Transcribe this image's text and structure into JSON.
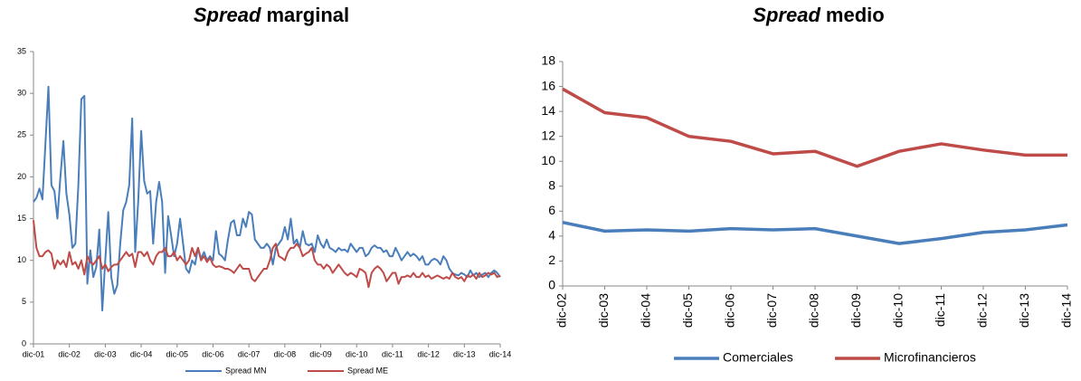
{
  "chart_data": [
    {
      "type": "line",
      "title": [
        "Spread",
        "marginal"
      ],
      "categories": [
        "dic-01",
        null,
        null,
        null,
        null,
        null,
        null,
        null,
        null,
        null,
        null,
        null,
        "dic-02",
        null,
        null,
        null,
        null,
        null,
        null,
        null,
        null,
        null,
        null,
        null,
        "dic-03",
        null,
        null,
        null,
        null,
        null,
        null,
        null,
        null,
        null,
        null,
        null,
        "dic-04",
        null,
        null,
        null,
        null,
        null,
        null,
        null,
        null,
        null,
        null,
        null,
        "dic-05",
        null,
        null,
        null,
        null,
        null,
        null,
        null,
        null,
        null,
        null,
        null,
        "dic-06",
        null,
        null,
        null,
        null,
        null,
        null,
        null,
        null,
        null,
        null,
        null,
        "dic-07",
        null,
        null,
        null,
        null,
        null,
        null,
        null,
        null,
        null,
        null,
        null,
        "dic-08",
        null,
        null,
        null,
        null,
        null,
        null,
        null,
        null,
        null,
        null,
        null,
        "dic-09",
        null,
        null,
        null,
        null,
        null,
        null,
        null,
        null,
        null,
        null,
        null,
        "dic-10",
        null,
        null,
        null,
        null,
        null,
        null,
        null,
        null,
        null,
        null,
        null,
        "dic-11",
        null,
        null,
        null,
        null,
        null,
        null,
        null,
        null,
        null,
        null,
        null,
        "dic-12",
        null,
        null,
        null,
        null,
        null,
        null,
        null,
        null,
        null,
        null,
        null,
        "dic-13",
        null,
        null,
        null,
        null,
        null,
        null,
        null,
        null,
        null,
        null,
        null,
        "dic-14"
      ],
      "series": [
        {
          "name": "Spread MN",
          "color": "#4a7ebb",
          "values": [
            17,
            17.5,
            18.6,
            17.3,
            24,
            30.8,
            19,
            18.3,
            15,
            20,
            24.3,
            18,
            15.5,
            11.5,
            12,
            19,
            29.3,
            29.7,
            7.2,
            11.2,
            8,
            9.2,
            13.7,
            4,
            10,
            15.8,
            8,
            6,
            7,
            12,
            16,
            17,
            19,
            27,
            11,
            17,
            25.5,
            19.5,
            18,
            18.3,
            12,
            17,
            19.4,
            17,
            8.5,
            15.3,
            13,
            10.5,
            12,
            15,
            12,
            9,
            8.5,
            10,
            9.5,
            11.5,
            10.2,
            11,
            10,
            10.5,
            10,
            13.5,
            10.8,
            10.5,
            10,
            12.5,
            14.5,
            14.8,
            13,
            13,
            15,
            14,
            15.8,
            15.5,
            12.5,
            12,
            11.5,
            11.5,
            12,
            11.5,
            9.5,
            11.5,
            12,
            12.5,
            14,
            12.5,
            15,
            12,
            12.5,
            11.5,
            13.5,
            12,
            11.8,
            12,
            11,
            13,
            12,
            11.5,
            12.5,
            11.5,
            11.3,
            11,
            11.5,
            11.2,
            11.3,
            11,
            12,
            11.5,
            11,
            11.5,
            11.5,
            10.5,
            10.8,
            11.5,
            11.8,
            11.5,
            11.5,
            11,
            11.2,
            10.5,
            10.5,
            11.5,
            10.8,
            10,
            10.5,
            11,
            10.5,
            10.8,
            10.5,
            10,
            10.5,
            9.5,
            9.5,
            10,
            10.2,
            10,
            9.5,
            10.5,
            10,
            9,
            8.5,
            8.3,
            8.2,
            8.5,
            8.3,
            8,
            8.8,
            8.2,
            8.5,
            8,
            8.3,
            8.5,
            8,
            8.5,
            8.8,
            8.5,
            8
          ]
        },
        {
          "name": "Spread ME",
          "color": "#be4b48",
          "values": [
            14.8,
            11.5,
            10.5,
            10.5,
            11,
            11.2,
            10.8,
            9,
            10,
            9.5,
            10,
            9.2,
            11,
            9.5,
            9.8,
            9,
            10,
            8.3,
            10.5,
            9.8,
            9.5,
            10,
            10.5,
            9,
            9.5,
            8.7,
            9.2,
            9.5,
            9.5,
            10,
            10.5,
            11,
            10.5,
            10.8,
            9.2,
            11,
            11,
            10.5,
            11,
            10,
            9.5,
            10.5,
            11,
            11,
            11.5,
            10.5,
            10.5,
            11,
            10,
            10.5,
            10,
            9.5,
            10,
            11.5,
            10.5,
            11.5,
            10,
            10.5,
            9.8,
            10.3,
            9.5,
            9.2,
            9.3,
            9.2,
            9,
            9,
            8.8,
            8.5,
            9,
            9.5,
            9,
            9,
            9,
            7.8,
            7.5,
            8,
            8.5,
            9,
            9,
            10,
            11.5,
            12,
            10.5,
            10.3,
            10,
            11,
            11.5,
            11.5,
            12,
            11.5,
            10.5,
            10.8,
            11,
            11.5,
            10,
            9.5,
            9.5,
            9,
            9.5,
            9.2,
            8.5,
            9,
            9.5,
            9,
            8.5,
            8.2,
            8.5,
            8.3,
            8,
            9,
            8.8,
            8.5,
            6.8,
            8.5,
            9,
            9.3,
            9,
            8.5,
            7.5,
            8,
            8.5,
            8.5,
            7.2,
            8,
            8,
            8.2,
            8,
            8.5,
            8,
            8,
            8.5,
            8,
            8.2,
            7.8,
            8,
            8.2,
            8,
            7.8,
            8,
            7.8,
            8.5,
            8,
            7.8,
            8,
            7.5,
            8.2,
            8,
            8.3,
            7.8,
            8.5,
            8,
            8.2,
            8.5,
            8.3,
            8.5,
            8,
            8.2
          ]
        }
      ],
      "ylim": [
        0,
        35
      ],
      "yticks": [
        0,
        5,
        10,
        15,
        20,
        25,
        30,
        35
      ],
      "grid": false,
      "legend": "bottom"
    },
    {
      "type": "line",
      "title": [
        "Spread",
        "medio"
      ],
      "categories": [
        "dic-02",
        "dic-03",
        "dic-04",
        "dic-05",
        "dic-06",
        "dic-07",
        "dic-08",
        "dic-09",
        "dic-10",
        "dic-11",
        "dic-12",
        "dic-13",
        "dic-14"
      ],
      "series": [
        {
          "name": "Comerciales",
          "color": "#4a7ebb",
          "values": [
            5.1,
            4.4,
            4.5,
            4.4,
            4.6,
            4.5,
            4.6,
            4.0,
            3.4,
            3.8,
            4.3,
            4.5,
            4.9
          ]
        },
        {
          "name": "Microfinancieros",
          "color": "#be4b48",
          "values": [
            15.8,
            13.9,
            13.5,
            12.0,
            11.6,
            10.6,
            10.8,
            9.6,
            10.8,
            11.4,
            10.9,
            10.5,
            10.5
          ]
        }
      ],
      "ylim": [
        0,
        18
      ],
      "yticks": [
        0,
        2,
        4,
        6,
        8,
        10,
        12,
        14,
        16,
        18
      ],
      "grid": false,
      "legend": "bottom"
    }
  ]
}
